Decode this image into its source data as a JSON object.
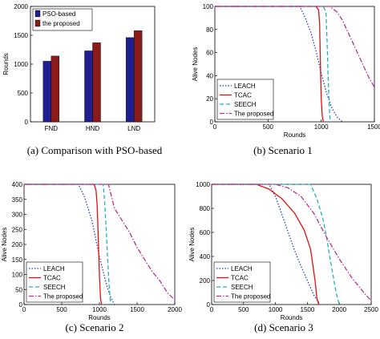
{
  "chart_data": [
    {
      "type": "bar",
      "categories": [
        "FND",
        "HND",
        "LND"
      ],
      "series": [
        {
          "name": "PSO-based",
          "color": "#1f1f8f",
          "values": [
            1050,
            1230,
            1460
          ]
        },
        {
          "name": "the proposed",
          "color": "#8b1a1a",
          "values": [
            1140,
            1370,
            1580
          ]
        }
      ],
      "ylabel": "Rounds",
      "ylim": [
        0,
        2000
      ],
      "yticks": [
        0,
        500,
        1000,
        1500,
        2000
      ],
      "legend": "top-left",
      "caption": "(a) Comparison with PSO-based"
    },
    {
      "type": "line",
      "xlabel": "Rounds",
      "ylabel": "Alive Nodes",
      "xlim": [
        0,
        1500
      ],
      "ylim": [
        0,
        100
      ],
      "xticks": [
        0,
        500,
        1000,
        1500
      ],
      "yticks": [
        0,
        20,
        40,
        60,
        80,
        100
      ],
      "legend": "bottom-left",
      "caption": "(b) Scenario 1",
      "series": [
        {
          "name": "LEACH",
          "color": "#1f3fbf",
          "dash": "1.5,2",
          "x": [
            0,
            800,
            850,
            900,
            950,
            1000,
            1050,
            1100,
            1150,
            1200
          ],
          "y": [
            100,
            100,
            90,
            78,
            62,
            42,
            25,
            12,
            4,
            0
          ]
        },
        {
          "name": "TCAC",
          "color": "#e01010",
          "dash": "",
          "x": [
            0,
            950,
            975,
            985,
            995,
            1000,
            1010,
            1020
          ],
          "y": [
            100,
            100,
            97,
            85,
            40,
            20,
            5,
            0
          ]
        },
        {
          "name": "SEECH",
          "color": "#20b0c8",
          "dash": "5,3",
          "x": [
            0,
            1020,
            1045,
            1055,
            1065,
            1075,
            1085
          ],
          "y": [
            100,
            100,
            95,
            70,
            40,
            15,
            0
          ]
        },
        {
          "name": "The proposed",
          "color": "#b83090",
          "dash": "6,2,1.5,2",
          "x": [
            0,
            1080,
            1150,
            1200,
            1250,
            1300,
            1350,
            1400,
            1450,
            1500
          ],
          "y": [
            100,
            100,
            95,
            88,
            78,
            68,
            58,
            48,
            38,
            30
          ]
        }
      ]
    },
    {
      "type": "line",
      "xlabel": "Rounds",
      "ylabel": "Alive Nodes",
      "xlim": [
        0,
        2000
      ],
      "ylim": [
        0,
        400
      ],
      "xticks": [
        0,
        500,
        1000,
        1500,
        2000
      ],
      "yticks": [
        0,
        50,
        100,
        150,
        200,
        250,
        300,
        350,
        400
      ],
      "legend": "bottom-left",
      "caption": "(c) Scenario 2",
      "series": [
        {
          "name": "LEACH",
          "color": "#1f3fbf",
          "dash": "1.5,2",
          "x": [
            0,
            720,
            800,
            850,
            900,
            950,
            1000,
            1050,
            1100,
            1150,
            1200
          ],
          "y": [
            400,
            400,
            360,
            320,
            280,
            220,
            160,
            110,
            60,
            25,
            0
          ]
        },
        {
          "name": "TCAC",
          "color": "#e01010",
          "dash": "",
          "x": [
            0,
            930,
            955,
            970,
            985,
            1000,
            1015,
            1030
          ],
          "y": [
            400,
            400,
            380,
            330,
            220,
            100,
            20,
            0
          ]
        },
        {
          "name": "SEECH",
          "color": "#20b0c8",
          "dash": "5,3",
          "x": [
            0,
            1050,
            1070,
            1090,
            1110,
            1130,
            1150
          ],
          "y": [
            400,
            400,
            340,
            250,
            150,
            60,
            0
          ]
        },
        {
          "name": "The proposed",
          "color": "#b83090",
          "dash": "6,2,1.5,2",
          "x": [
            0,
            1120,
            1200,
            1300,
            1400,
            1500,
            1600,
            1700,
            1800,
            1900,
            2000
          ],
          "y": [
            400,
            400,
            320,
            280,
            240,
            190,
            150,
            110,
            80,
            40,
            15
          ]
        }
      ]
    },
    {
      "type": "line",
      "xlabel": "Rounds",
      "ylabel": "Alive Nodes",
      "xlim": [
        0,
        2500
      ],
      "ylim": [
        0,
        1000
      ],
      "xticks": [
        0,
        500,
        1000,
        1500,
        2000,
        2500
      ],
      "yticks": [
        0,
        200,
        400,
        600,
        800,
        1000
      ],
      "legend": "bottom-left",
      "caption": "(d) Scenario 3",
      "series": [
        {
          "name": "LEACH",
          "color": "#1f3fbf",
          "dash": "1.5,2",
          "x": [
            0,
            900,
            1000,
            1100,
            1200,
            1300,
            1400,
            1500,
            1600,
            1700
          ],
          "y": [
            1000,
            1000,
            900,
            750,
            600,
            450,
            320,
            200,
            80,
            0
          ]
        },
        {
          "name": "TCAC",
          "color": "#e01010",
          "dash": "",
          "x": [
            0,
            700,
            900,
            1100,
            1300,
            1450,
            1550,
            1620,
            1650,
            1680
          ],
          "y": [
            1000,
            1000,
            960,
            880,
            760,
            620,
            460,
            200,
            50,
            0
          ]
        },
        {
          "name": "SEECH",
          "color": "#20b0c8",
          "dash": "5,3",
          "x": [
            0,
            1550,
            1650,
            1750,
            1800,
            1850,
            1900,
            1950,
            2000
          ],
          "y": [
            1000,
            1000,
            880,
            700,
            560,
            400,
            250,
            100,
            0
          ]
        },
        {
          "name": "The proposed",
          "color": "#b83090",
          "dash": "6,2,1.5,2",
          "x": [
            0,
            1000,
            1200,
            1400,
            1600,
            1800,
            2000,
            2200,
            2400,
            2500
          ],
          "y": [
            1000,
            1000,
            970,
            900,
            760,
            560,
            380,
            220,
            90,
            30
          ]
        }
      ]
    }
  ]
}
